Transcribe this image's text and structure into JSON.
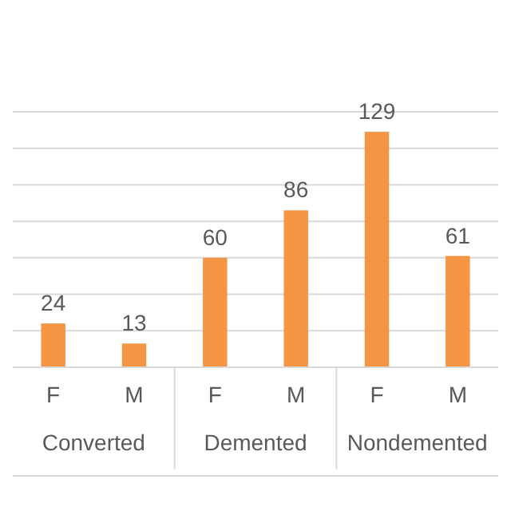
{
  "chart_data": {
    "type": "bar",
    "categories": [
      "F",
      "M",
      "F",
      "M",
      "F",
      "M"
    ],
    "values": [
      24,
      13,
      60,
      86,
      129,
      61
    ],
    "color": "#f59442",
    "data_labels": true,
    "ylim": [
      0,
      140
    ],
    "yticks": [
      {
        "value": 0,
        "label": null
      },
      {
        "value": 20,
        "label": null
      },
      {
        "value": 40,
        "label": null
      },
      {
        "value": 60,
        "label": null
      },
      {
        "value": 80,
        "label": null
      },
      {
        "value": 100,
        "label": null
      },
      {
        "value": 120,
        "label": null
      },
      {
        "value": 140,
        "label": null
      }
    ],
    "grid": "y",
    "tick_labels": "x",
    "annotations": [
      "Converted",
      "Demented",
      "Nondemented"
    ]
  }
}
